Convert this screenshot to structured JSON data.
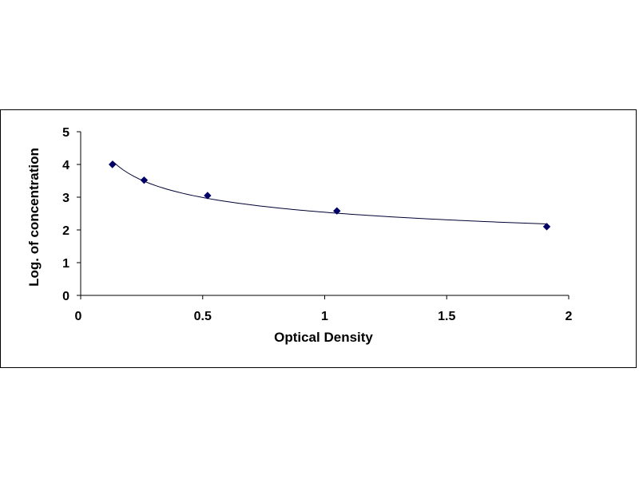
{
  "chart_data": {
    "type": "scatter",
    "title": "",
    "xlabel": "Optical Density",
    "ylabel": "Log. of concentration",
    "xlim": [
      0,
      2
    ],
    "ylim": [
      0,
      5
    ],
    "x_ticks": [
      "0",
      "0.5",
      "1",
      "1.5",
      "2"
    ],
    "y_ticks": [
      "0",
      "1",
      "2",
      "3",
      "4",
      "5"
    ],
    "grid": false,
    "legend": "none",
    "series": [
      {
        "points": [
          {
            "x": 0.13,
            "y": 4.0
          },
          {
            "x": 0.26,
            "y": 3.52
          },
          {
            "x": 0.52,
            "y": 3.05
          },
          {
            "x": 1.05,
            "y": 2.58
          },
          {
            "x": 1.91,
            "y": 2.1
          }
        ],
        "marker": "diamond",
        "marker_color": "#000066",
        "trendline": "power",
        "line_color": "#000033"
      }
    ]
  }
}
